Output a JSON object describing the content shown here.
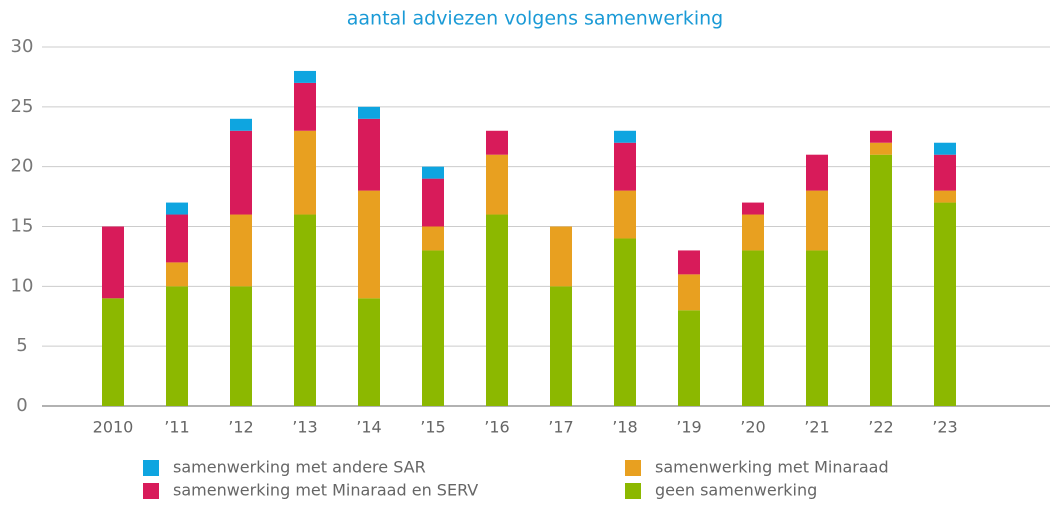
{
  "chart_data": {
    "type": "stacked_bar",
    "title": "aantal adviezen volgens samenwerking",
    "categories": [
      "2010",
      "’11",
      "’12",
      "’13",
      "’14",
      "’15",
      "’16",
      "’17",
      "’18",
      "’19",
      "’20",
      "’21",
      "’22",
      "’23"
    ],
    "series": [
      {
        "name": "geen samenwerking",
        "color": "#8cb800",
        "values": [
          9,
          10,
          10,
          16,
          9,
          13,
          16,
          10,
          14,
          8,
          13,
          13,
          21,
          17
        ]
      },
      {
        "name": "samenwerking met Minaraad",
        "color": "#e8a020",
        "values": [
          0,
          2,
          6,
          7,
          9,
          2,
          5,
          5,
          4,
          3,
          3,
          5,
          1,
          1
        ]
      },
      {
        "name": "samenwerking met Minaraad en SERV",
        "color": "#d81b5a",
        "values": [
          6,
          4,
          7,
          4,
          6,
          4,
          2,
          0,
          4,
          2,
          1,
          3,
          1,
          3
        ]
      },
      {
        "name": "samenwerking met andere SAR",
        "color": "#0ea5e0",
        "values": [
          0,
          1,
          1,
          1,
          1,
          1,
          0,
          0,
          1,
          0,
          0,
          0,
          0,
          1
        ]
      }
    ],
    "ylim": [
      0,
      30
    ],
    "yticks": [
      0,
      5,
      10,
      15,
      20,
      25,
      30
    ],
    "grid": true
  }
}
